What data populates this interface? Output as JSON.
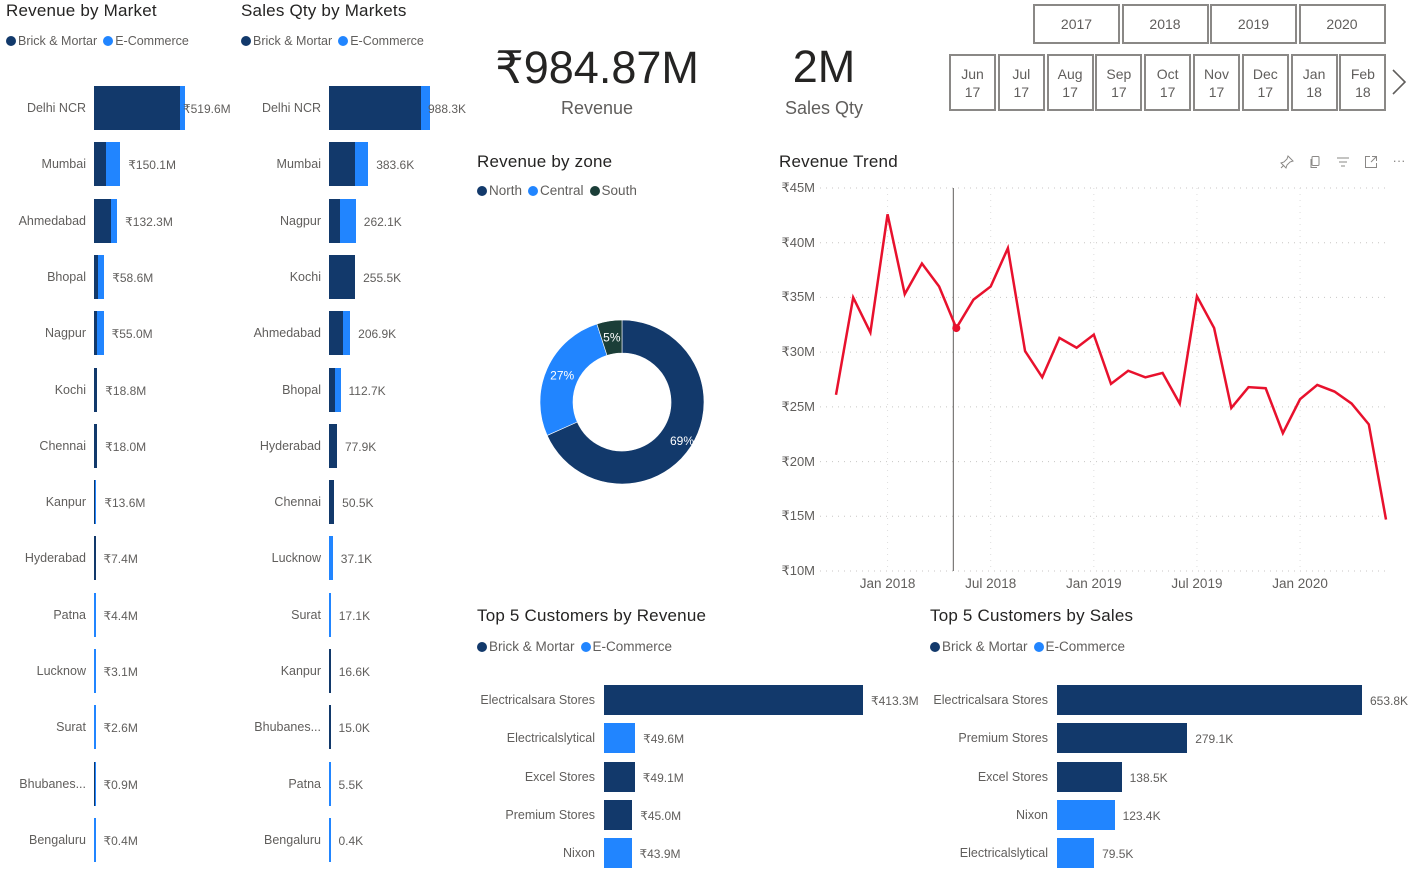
{
  "colors": {
    "brick": "#12396B",
    "ecom": "#2185FF",
    "south": "#1B3E38",
    "trend": "#E8112D"
  },
  "legend": {
    "brick": "Brick & Mortar",
    "ecom": "E-Commerce"
  },
  "revenue_by_market": {
    "title": "Revenue by Market",
    "rows": [
      {
        "label": "Delhi NCR",
        "value": 519.6,
        "text": "₹519.6M",
        "brick_share": 0.94
      },
      {
        "label": "Mumbai",
        "value": 150.1,
        "text": "₹150.1M",
        "brick_share": 0.44
      },
      {
        "label": "Ahmedabad",
        "value": 132.3,
        "text": "₹132.3M",
        "brick_share": 0.75
      },
      {
        "label": "Bhopal",
        "value": 58.6,
        "text": "₹58.6M",
        "brick_share": 0.4
      },
      {
        "label": "Nagpur",
        "value": 55.0,
        "text": "₹55.0M",
        "brick_share": 0.3
      },
      {
        "label": "Kochi",
        "value": 18.8,
        "text": "₹18.8M",
        "brick_share": 1
      },
      {
        "label": "Chennai",
        "value": 18.0,
        "text": "₹18.0M",
        "brick_share": 1
      },
      {
        "label": "Kanpur",
        "value": 13.6,
        "text": "₹13.6M",
        "brick_share": 0.5
      },
      {
        "label": "Hyderabad",
        "value": 7.4,
        "text": "₹7.4M",
        "brick_share": 1
      },
      {
        "label": "Patna",
        "value": 4.4,
        "text": "₹4.4M",
        "brick_share": 0
      },
      {
        "label": "Lucknow",
        "value": 3.1,
        "text": "₹3.1M",
        "brick_share": 0
      },
      {
        "label": "Surat",
        "value": 2.6,
        "text": "₹2.6M",
        "brick_share": 0
      },
      {
        "label": "Bhubanes...",
        "value": 0.9,
        "text": "₹0.9M",
        "brick_share": 0.5
      },
      {
        "label": "Bengaluru",
        "value": 0.4,
        "text": "₹0.4M",
        "brick_share": 0
      }
    ]
  },
  "sales_by_market": {
    "title": "Sales Qty by Markets",
    "rows": [
      {
        "label": "Delhi NCR",
        "value": 988.3,
        "text": "988.3K",
        "brick_share": 0.91
      },
      {
        "label": "Mumbai",
        "value": 383.6,
        "text": "383.6K",
        "brick_share": 0.66
      },
      {
        "label": "Nagpur",
        "value": 262.1,
        "text": "262.1K",
        "brick_share": 0.4
      },
      {
        "label": "Kochi",
        "value": 255.5,
        "text": "255.5K",
        "brick_share": 1
      },
      {
        "label": "Ahmedabad",
        "value": 206.9,
        "text": "206.9K",
        "brick_share": 0.68
      },
      {
        "label": "Bhopal",
        "value": 112.7,
        "text": "112.7K",
        "brick_share": 0.5
      },
      {
        "label": "Hyderabad",
        "value": 77.9,
        "text": "77.9K",
        "brick_share": 1
      },
      {
        "label": "Chennai",
        "value": 50.5,
        "text": "50.5K",
        "brick_share": 1
      },
      {
        "label": "Lucknow",
        "value": 37.1,
        "text": "37.1K",
        "brick_share": 0
      },
      {
        "label": "Surat",
        "value": 17.1,
        "text": "17.1K",
        "brick_share": 0
      },
      {
        "label": "Kanpur",
        "value": 16.6,
        "text": "16.6K",
        "brick_share": 1
      },
      {
        "label": "Bhubanes...",
        "value": 15.0,
        "text": "15.0K",
        "brick_share": 1
      },
      {
        "label": "Patna",
        "value": 5.5,
        "text": "5.5K",
        "brick_share": 0
      },
      {
        "label": "Bengaluru",
        "value": 0.4,
        "text": "0.4K",
        "brick_share": 0
      }
    ]
  },
  "kpis": {
    "revenue_value": "₹984.87M",
    "revenue_label": "Revenue",
    "qty_value": "2M",
    "qty_label": "Sales Qty"
  },
  "slicer": {
    "years": [
      "2017",
      "2018",
      "2019",
      "2020"
    ],
    "months": [
      [
        "Jun",
        "17"
      ],
      [
        "Jul",
        "17"
      ],
      [
        "Aug",
        "17"
      ],
      [
        "Sep",
        "17"
      ],
      [
        "Oct",
        "17"
      ],
      [
        "Nov",
        "17"
      ],
      [
        "Dec",
        "17"
      ],
      [
        "Jan",
        "18"
      ],
      [
        "Feb",
        "18"
      ]
    ],
    "next_icon": "chevron-right-icon"
  },
  "zone": {
    "title": "Revenue by zone",
    "chart_data": {
      "type": "pie",
      "donut": true,
      "categories": [
        "North",
        "Central",
        "South"
      ],
      "values": [
        69,
        27,
        5
      ],
      "labels": [
        "69%",
        "27%",
        "5%"
      ]
    }
  },
  "trend": {
    "title": "Revenue Trend",
    "toolbar": [
      "pin-icon",
      "copy-icon",
      "filter-icon",
      "focus-mode-icon",
      "more-options-icon"
    ],
    "chart_data": {
      "type": "line",
      "x": [
        "2017-10",
        "2017-11",
        "2017-12",
        "2018-01",
        "2018-02",
        "2018-03",
        "2018-04",
        "2018-05",
        "2018-06",
        "2018-07",
        "2018-08",
        "2018-09",
        "2018-10",
        "2018-11",
        "2018-12",
        "2019-01",
        "2019-02",
        "2019-03",
        "2019-04",
        "2019-05",
        "2019-06",
        "2019-07",
        "2019-08",
        "2019-09",
        "2019-10",
        "2019-11",
        "2019-12",
        "2020-01",
        "2020-02",
        "2020-03",
        "2020-04",
        "2020-05",
        "2020-06"
      ],
      "y": [
        26.1,
        35.0,
        31.8,
        42.6,
        35.3,
        38.1,
        36.0,
        32.2,
        34.8,
        36.0,
        39.5,
        30.1,
        27.7,
        31.3,
        30.4,
        31.6,
        27.1,
        28.3,
        27.7,
        28.1,
        25.3,
        35.1,
        32.2,
        24.9,
        26.8,
        26.7,
        22.6,
        25.7,
        27.0,
        26.4,
        25.3,
        23.4,
        14.7
      ],
      "ylim": [
        10,
        45
      ],
      "yticks": [
        "₹10M",
        "₹15M",
        "₹20M",
        "₹25M",
        "₹30M",
        "₹35M",
        "₹40M",
        "₹45M"
      ],
      "ytick_values": [
        10,
        15,
        20,
        25,
        30,
        35,
        40,
        45
      ],
      "xticks": [
        "Jan 2018",
        "Jul 2018",
        "Jan 2019",
        "Jul 2019",
        "Jan 2020"
      ],
      "xtick_values": [
        "2018-01",
        "2018-07",
        "2019-01",
        "2019-07",
        "2020-01"
      ],
      "highlight": "2018-05",
      "grid": true
    }
  },
  "top_rev": {
    "title": "Top 5 Customers by Revenue",
    "rows": [
      {
        "label": "Electricalsara Stores",
        "value": 413.3,
        "text": "₹413.3M",
        "channel": "brick"
      },
      {
        "label": "Electricalslytical",
        "value": 49.6,
        "text": "₹49.6M",
        "channel": "ecom"
      },
      {
        "label": "Excel Stores",
        "value": 49.1,
        "text": "₹49.1M",
        "channel": "brick"
      },
      {
        "label": "Premium Stores",
        "value": 45.0,
        "text": "₹45.0M",
        "channel": "brick"
      },
      {
        "label": "Nixon",
        "value": 43.9,
        "text": "₹43.9M",
        "channel": "ecom"
      }
    ]
  },
  "top_sales": {
    "title": "Top 5 Customers by Sales",
    "rows": [
      {
        "label": "Electricalsara Stores",
        "value": 653.8,
        "text": "653.8K",
        "channel": "brick"
      },
      {
        "label": "Premium Stores",
        "value": 279.1,
        "text": "279.1K",
        "channel": "brick"
      },
      {
        "label": "Excel Stores",
        "value": 138.5,
        "text": "138.5K",
        "channel": "brick"
      },
      {
        "label": "Nixon",
        "value": 123.4,
        "text": "123.4K",
        "channel": "ecom"
      },
      {
        "label": "Electricalslytical",
        "value": 79.5,
        "text": "79.5K",
        "channel": "ecom"
      }
    ]
  }
}
